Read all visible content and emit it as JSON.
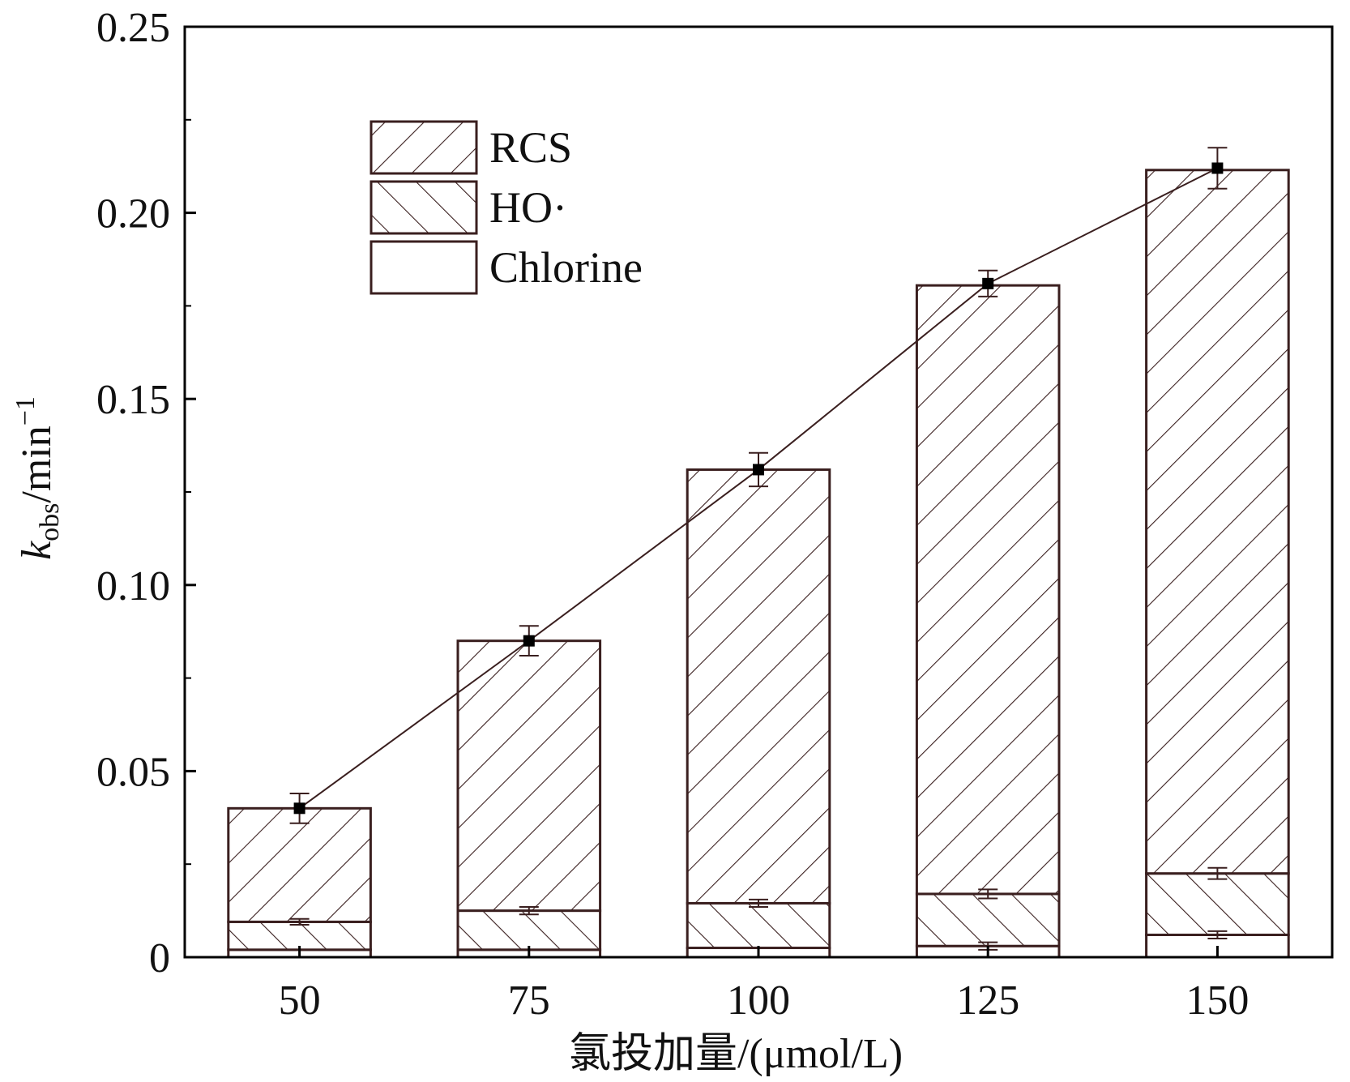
{
  "colors": {
    "outline": "#3a1f1f",
    "hatch": "#3a1f1f",
    "trend_line": "#3a1f1f",
    "marker": "#000000",
    "axis": "#000000",
    "background": "#ffffff"
  },
  "chart_data": {
    "type": "bar",
    "stacked": true,
    "categories": [
      "50",
      "75",
      "100",
      "125",
      "150"
    ],
    "xlabel": "氯投加量/(μmol/L)",
    "ylabel": {
      "symbol": "k",
      "subscript": "obs",
      "unit": "/min",
      "exponent": "−1"
    },
    "ylim": [
      0,
      0.25
    ],
    "yticks": [
      0,
      0.05,
      0.1,
      0.15,
      0.2,
      0.25
    ],
    "ytick_labels": [
      "0",
      "0.05",
      "0.10",
      "0.15",
      "0.20",
      "0.25"
    ],
    "series": [
      {
        "name": "Chlorine",
        "pattern": "none",
        "values": [
          0.002,
          0.002,
          0.0025,
          0.003,
          0.006
        ]
      },
      {
        "name": "HO·",
        "pattern": "hatch-up",
        "values": [
          0.0075,
          0.0105,
          0.012,
          0.014,
          0.0165
        ]
      },
      {
        "name": "RCS",
        "pattern": "hatch-down",
        "values": [
          0.0305,
          0.0725,
          0.1165,
          0.1635,
          0.189
        ]
      }
    ],
    "totals_line": {
      "values": [
        0.04,
        0.085,
        0.131,
        0.181,
        0.212
      ],
      "errors": [
        0.004,
        0.004,
        0.0045,
        0.0035,
        0.0055
      ]
    },
    "component_errors": {
      "Chlorine": [
        0,
        0,
        0,
        0.001,
        0.001
      ],
      "HO·": [
        0.0008,
        0.001,
        0.001,
        0.0012,
        0.0015
      ]
    },
    "legend": {
      "position": "top-left",
      "entries": [
        "RCS",
        "HO·",
        "Chlorine"
      ]
    }
  }
}
